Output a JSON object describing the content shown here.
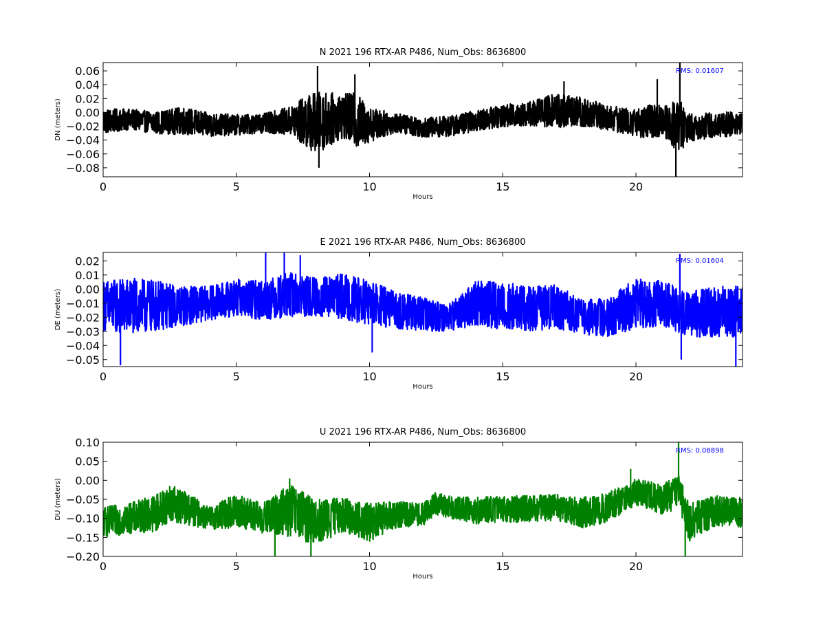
{
  "chart_data": [
    {
      "type": "line",
      "title": "N 2021 196 RTX-AR  P486, Num_Obs: 8636800",
      "xlabel": "Hours",
      "ylabel": "DN (meters)",
      "xlim": [
        0,
        24
      ],
      "ylim": [
        -0.093,
        0.072
      ],
      "xticks": [
        0,
        5,
        10,
        15,
        20
      ],
      "yticks": [
        -0.08,
        -0.06,
        -0.04,
        -0.02,
        0.0,
        0.02,
        0.04,
        0.06
      ],
      "ytick_decimals": 2,
      "rms_label": "RMS:  0.01607",
      "rms_color": "#0000ff",
      "grid": false,
      "series": [
        {
          "color": "#000000",
          "baseline": [
            [
              0,
              -0.013
            ],
            [
              1,
              -0.01
            ],
            [
              2,
              -0.015
            ],
            [
              3,
              -0.012
            ],
            [
              4,
              -0.018
            ],
            [
              5,
              -0.018
            ],
            [
              6,
              -0.016
            ],
            [
              7,
              -0.012
            ],
            [
              8,
              -0.015
            ],
            [
              9,
              -0.005
            ],
            [
              10,
              -0.018
            ],
            [
              11,
              -0.015
            ],
            [
              12,
              -0.022
            ],
            [
              13,
              -0.02
            ],
            [
              14,
              -0.012
            ],
            [
              15,
              -0.005
            ],
            [
              16,
              -0.002
            ],
            [
              17,
              0.003
            ],
            [
              18,
              0.0
            ],
            [
              19,
              -0.008
            ],
            [
              20,
              -0.015
            ],
            [
              21,
              -0.012
            ],
            [
              22,
              -0.022
            ],
            [
              23,
              -0.018
            ],
            [
              24,
              -0.016
            ]
          ],
          "envelope": [
            [
              0,
              0.018
            ],
            [
              1,
              0.015
            ],
            [
              2,
              0.016
            ],
            [
              3,
              0.02
            ],
            [
              4,
              0.017
            ],
            [
              5,
              0.015
            ],
            [
              6,
              0.014
            ],
            [
              7,
              0.02
            ],
            [
              7.5,
              0.035
            ],
            [
              8,
              0.045
            ],
            [
              9,
              0.032
            ],
            [
              9.5,
              0.04
            ],
            [
              10,
              0.025
            ],
            [
              11,
              0.014
            ],
            [
              12,
              0.014
            ],
            [
              13,
              0.015
            ],
            [
              14,
              0.015
            ],
            [
              15,
              0.016
            ],
            [
              16,
              0.018
            ],
            [
              17,
              0.025
            ],
            [
              18,
              0.022
            ],
            [
              19,
              0.018
            ],
            [
              20,
              0.02
            ],
            [
              20.5,
              0.025
            ],
            [
              21,
              0.022
            ],
            [
              21.6,
              0.04
            ],
            [
              22,
              0.02
            ],
            [
              23,
              0.018
            ],
            [
              24,
              0.018
            ]
          ],
          "spikes": [
            [
              8.05,
              0.067
            ],
            [
              8.1,
              -0.08
            ],
            [
              9.45,
              0.055
            ],
            [
              17.3,
              0.045
            ],
            [
              20.8,
              0.048
            ],
            [
              21.5,
              -0.093
            ],
            [
              21.65,
              0.072
            ]
          ]
        }
      ]
    },
    {
      "type": "line",
      "title": "E 2021 196 RTX-AR  P486, Num_Obs: 8636800",
      "xlabel": "Hours",
      "ylabel": "DE (meters)",
      "xlim": [
        0,
        24
      ],
      "ylim": [
        -0.055,
        0.026
      ],
      "xticks": [
        0,
        5,
        10,
        15,
        20
      ],
      "yticks": [
        -0.05,
        -0.04,
        -0.03,
        -0.02,
        -0.01,
        0.0,
        0.01,
        0.02
      ],
      "ytick_decimals": 2,
      "rms_label": "RMS:  0.01604",
      "rms_color": "#0000ff",
      "grid": false,
      "series": [
        {
          "color": "#0000ff",
          "baseline": [
            [
              0,
              -0.012
            ],
            [
              1,
              -0.012
            ],
            [
              2,
              -0.012
            ],
            [
              3,
              -0.012
            ],
            [
              4,
              -0.01
            ],
            [
              5,
              -0.006
            ],
            [
              6,
              -0.008
            ],
            [
              7,
              -0.004
            ],
            [
              8,
              -0.006
            ],
            [
              9,
              -0.005
            ],
            [
              10,
              -0.01
            ],
            [
              11,
              -0.015
            ],
            [
              12,
              -0.018
            ],
            [
              13,
              -0.02
            ],
            [
              14,
              -0.01
            ],
            [
              15,
              -0.012
            ],
            [
              16,
              -0.014
            ],
            [
              17,
              -0.012
            ],
            [
              18,
              -0.02
            ],
            [
              19,
              -0.02
            ],
            [
              20,
              -0.01
            ],
            [
              21,
              -0.01
            ],
            [
              22,
              -0.018
            ],
            [
              23,
              -0.016
            ],
            [
              24,
              -0.016
            ]
          ],
          "envelope": [
            [
              0,
              0.018
            ],
            [
              1,
              0.02
            ],
            [
              2,
              0.018
            ],
            [
              3,
              0.014
            ],
            [
              4,
              0.012
            ],
            [
              5,
              0.013
            ],
            [
              6,
              0.014
            ],
            [
              7,
              0.016
            ],
            [
              8,
              0.014
            ],
            [
              9,
              0.016
            ],
            [
              10,
              0.016
            ],
            [
              11,
              0.013
            ],
            [
              12,
              0.012
            ],
            [
              13,
              0.01
            ],
            [
              14,
              0.016
            ],
            [
              15,
              0.017
            ],
            [
              16,
              0.016
            ],
            [
              17,
              0.016
            ],
            [
              18,
              0.012
            ],
            [
              19,
              0.014
            ],
            [
              20,
              0.018
            ],
            [
              21,
              0.016
            ],
            [
              22,
              0.016
            ],
            [
              23,
              0.018
            ],
            [
              24,
              0.018
            ]
          ],
          "spikes": [
            [
              0.65,
              -0.054
            ],
            [
              6.1,
              0.026
            ],
            [
              6.8,
              0.026
            ],
            [
              7.4,
              0.024
            ],
            [
              10.1,
              -0.045
            ],
            [
              21.65,
              0.025
            ],
            [
              21.7,
              -0.05
            ],
            [
              23.75,
              -0.055
            ]
          ]
        }
      ]
    },
    {
      "type": "line",
      "title": "U 2021 196 RTX-AR  P486, Num_Obs: 8636800",
      "xlabel": "Hours",
      "ylabel": "DU (meters)",
      "xlim": [
        0,
        24
      ],
      "ylim": [
        -0.2,
        0.1
      ],
      "xticks": [
        0,
        5,
        10,
        15,
        20
      ],
      "yticks": [
        -0.2,
        -0.15,
        -0.1,
        -0.05,
        0.0,
        0.05,
        0.1
      ],
      "ytick_decimals": 2,
      "rms_label": "RMS:  0.08898",
      "rms_color": "#0000ff",
      "grid": false,
      "series": [
        {
          "color": "#008000",
          "baseline": [
            [
              0,
              -0.11
            ],
            [
              1,
              -0.1
            ],
            [
              2,
              -0.085
            ],
            [
              2.5,
              -0.06
            ],
            [
              3,
              -0.07
            ],
            [
              4,
              -0.1
            ],
            [
              5,
              -0.08
            ],
            [
              6,
              -0.1
            ],
            [
              7,
              -0.08
            ],
            [
              8,
              -0.11
            ],
            [
              9,
              -0.09
            ],
            [
              10,
              -0.11
            ],
            [
              11,
              -0.09
            ],
            [
              12,
              -0.09
            ],
            [
              12.5,
              -0.06
            ],
            [
              13,
              -0.07
            ],
            [
              14,
              -0.08
            ],
            [
              15,
              -0.075
            ],
            [
              16,
              -0.075
            ],
            [
              17,
              -0.07
            ],
            [
              18,
              -0.085
            ],
            [
              19,
              -0.07
            ],
            [
              20,
              -0.03
            ],
            [
              21,
              -0.05
            ],
            [
              21.6,
              -0.03
            ],
            [
              22,
              -0.11
            ],
            [
              23,
              -0.08
            ],
            [
              24,
              -0.085
            ]
          ],
          "envelope": [
            [
              0,
              0.04
            ],
            [
              1,
              0.04
            ],
            [
              2,
              0.05
            ],
            [
              3,
              0.045
            ],
            [
              4,
              0.03
            ],
            [
              5,
              0.045
            ],
            [
              6,
              0.04
            ],
            [
              7,
              0.07
            ],
            [
              8,
              0.06
            ],
            [
              9,
              0.045
            ],
            [
              10,
              0.05
            ],
            [
              11,
              0.035
            ],
            [
              12,
              0.03
            ],
            [
              13,
              0.03
            ],
            [
              14,
              0.035
            ],
            [
              15,
              0.035
            ],
            [
              16,
              0.035
            ],
            [
              17,
              0.035
            ],
            [
              18,
              0.04
            ],
            [
              19,
              0.04
            ],
            [
              20,
              0.035
            ],
            [
              21,
              0.04
            ],
            [
              22,
              0.05
            ],
            [
              23,
              0.04
            ],
            [
              24,
              0.04
            ]
          ],
          "spikes": [
            [
              6.45,
              -0.2
            ],
            [
              7.0,
              0.005
            ],
            [
              7.8,
              -0.2
            ],
            [
              19.8,
              0.03
            ],
            [
              21.6,
              0.1
            ],
            [
              21.85,
              -0.2
            ]
          ]
        }
      ]
    }
  ]
}
